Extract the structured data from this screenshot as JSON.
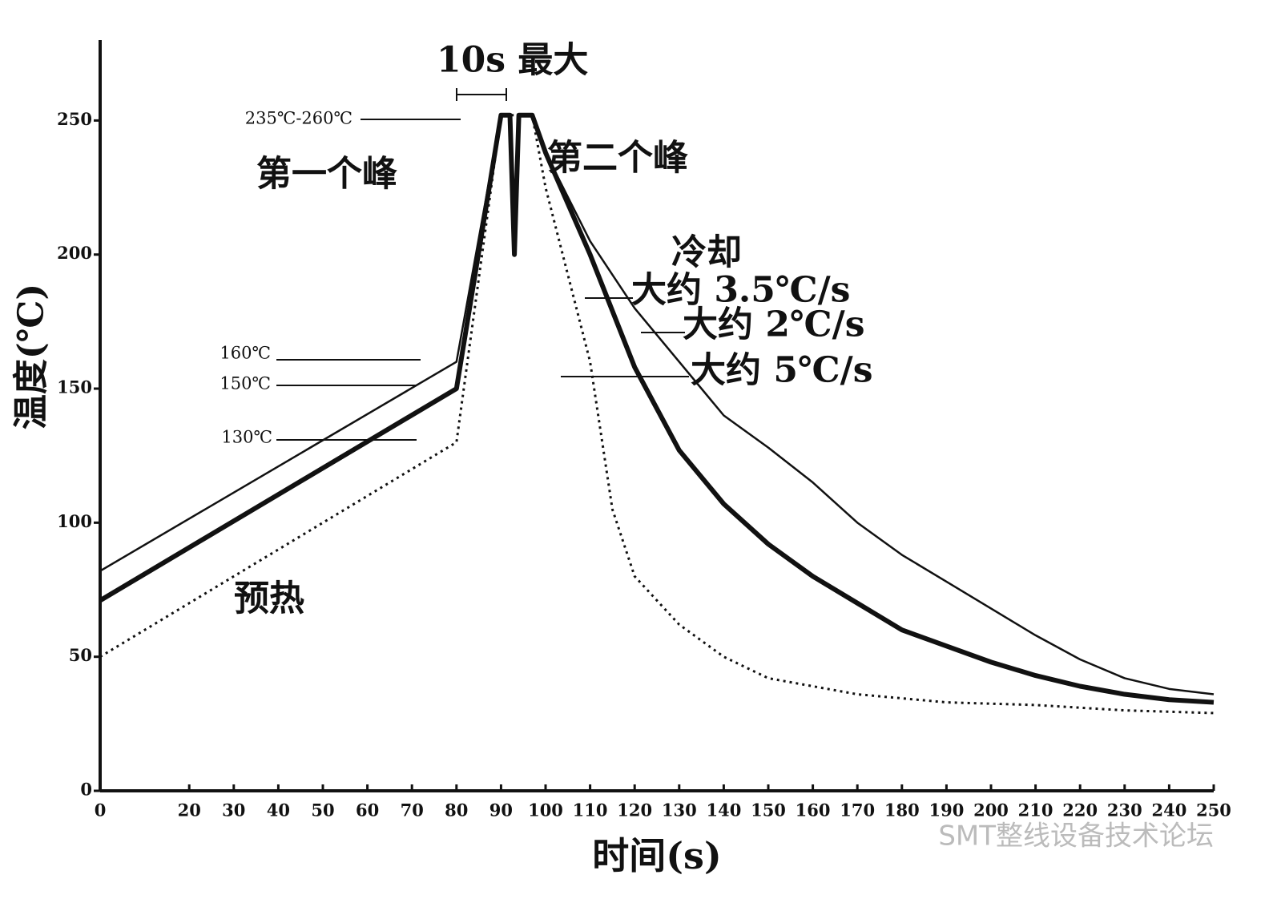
{
  "chart_data": {
    "type": "line",
    "x_label": "时间(s)",
    "y_label": "温度(℃)",
    "xlim": [
      0,
      250
    ],
    "ylim": [
      0,
      280
    ],
    "xticks": [
      0,
      20,
      30,
      40,
      50,
      60,
      70,
      80,
      90,
      100,
      110,
      120,
      130,
      140,
      150,
      160,
      170,
      180,
      190,
      200,
      210,
      220,
      230,
      240,
      250
    ],
    "yticks": [
      0,
      50,
      100,
      150,
      200,
      250
    ],
    "series": [
      {
        "style": "thin",
        "color": "#111",
        "x": [
          0,
          80,
          90,
          92,
          93,
          94,
          97,
          100,
          110,
          120,
          130,
          140,
          150,
          160,
          170,
          180,
          190,
          200,
          210,
          220,
          230,
          240,
          250
        ],
        "values": [
          82,
          160,
          252,
          252,
          200,
          252,
          252,
          238,
          205,
          180,
          160,
          140,
          128,
          115,
          100,
          88,
          78,
          68,
          58,
          49,
          42,
          38,
          36
        ]
      },
      {
        "style": "thick",
        "color": "#111",
        "x": [
          0,
          80,
          90,
          92,
          93,
          94,
          97,
          100,
          110,
          120,
          130,
          140,
          150,
          160,
          170,
          180,
          190,
          200,
          210,
          220,
          230,
          240,
          250
        ],
        "values": [
          71,
          150,
          252,
          252,
          200,
          252,
          252,
          238,
          200,
          158,
          127,
          107,
          92,
          80,
          70,
          60,
          54,
          48,
          43,
          39,
          36,
          34,
          33
        ]
      },
      {
        "style": "dotted",
        "color": "#111",
        "x": [
          0,
          80,
          90,
          97,
          100,
          110,
          115,
          120,
          130,
          140,
          150,
          170,
          190,
          210,
          230,
          250
        ],
        "values": [
          50,
          130,
          252,
          252,
          225,
          160,
          105,
          80,
          62,
          50,
          42,
          36,
          33,
          32,
          30,
          29
        ]
      }
    ],
    "annotations": [
      "10s 最大",
      "235℃-260℃",
      "第一个峰",
      "第二个峰",
      "冷却",
      "大约 3.5℃/s",
      "大约 2℃/s",
      "大约 5℃/s",
      "预热",
      "160℃",
      "150℃",
      "130℃"
    ],
    "watermark": "SMT整线设备技术论坛"
  }
}
